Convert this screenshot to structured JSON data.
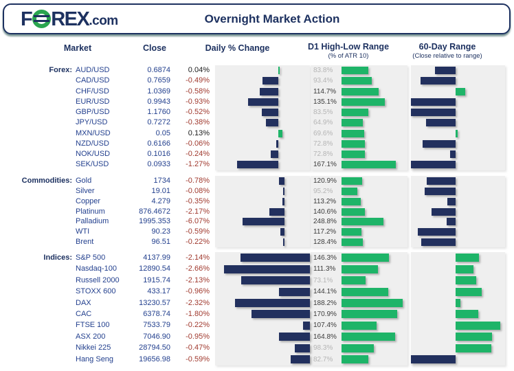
{
  "title": "Overnight Market Action",
  "logo": {
    "pre": "F",
    "mid": "REX",
    "suffix": ".com"
  },
  "columns": {
    "market": "Market",
    "close": "Close",
    "daily": "Daily % Change",
    "d1": "D1 High-Low Range",
    "d1_sub": "(% of ATR 10)",
    "range60": "60-Day Range",
    "range60_sub": "(Close relative to range)"
  },
  "colors": {
    "accent_navy": "#22305e",
    "accent_green": "#1eb468",
    "header_navy": "#1d3160",
    "navy_text": "#23408e",
    "positive_text": "#1a1a1a",
    "negative_text": "#a0392e",
    "panel_bg": "#efefef",
    "muted_label": "#b4b4b4",
    "dark_label": "#3a3a3a",
    "logo_green": "#2aa54f"
  },
  "chart_data": {
    "type": "table",
    "title": "Overnight Market Action",
    "columns": [
      "Market",
      "Close",
      "Daily % Change",
      "D1 High-Low Range (% of ATR 10)",
      "60-Day Range (Close relative to range)"
    ],
    "notes": "Daily % Change and 60-Day Range are diverging bar charts: navy = negative / lower half of range, green = positive / upper half. D1 range bars are green with value labels; labels under 100% are grayed. range60_pct is close position relative to 60-day range midpoint, -100 = at range low, +100 = at range high.",
    "sections": [
      {
        "label": "Forex:",
        "rows": [
          {
            "market": "AUD/USD",
            "close": "0.6874",
            "daily_label": "0.04%",
            "daily_pct": 0.04,
            "d1_label": "83.8%",
            "d1_pct": 83.8,
            "range60_pct": -46
          },
          {
            "market": "CAD/USD",
            "close": "0.7659",
            "daily_label": "-0.49%",
            "daily_pct": -0.49,
            "d1_label": "93.4%",
            "d1_pct": 93.4,
            "range60_pct": -78
          },
          {
            "market": "CHF/USD",
            "close": "1.0369",
            "daily_label": "-0.58%",
            "daily_pct": -0.58,
            "d1_label": "114.7%",
            "d1_pct": 114.7,
            "range60_pct": 22
          },
          {
            "market": "EUR/USD",
            "close": "0.9943",
            "daily_label": "-0.93%",
            "daily_pct": -0.93,
            "d1_label": "135.1%",
            "d1_pct": 135.1,
            "range60_pct": -100
          },
          {
            "market": "GBP/USD",
            "close": "1.1760",
            "daily_label": "-0.52%",
            "daily_pct": -0.52,
            "d1_label": "83.5%",
            "d1_pct": 83.5,
            "range60_pct": -100
          },
          {
            "market": "JPY/USD",
            "close": "0.7272",
            "daily_label": "-0.38%",
            "daily_pct": -0.38,
            "d1_label": "64.9%",
            "d1_pct": 64.9,
            "range60_pct": -66
          },
          {
            "market": "MXN/USD",
            "close": "0.05",
            "daily_label": "0.13%",
            "daily_pct": 0.13,
            "d1_label": "69.6%",
            "d1_pct": 69.6,
            "range60_pct": 5
          },
          {
            "market": "NZD/USD",
            "close": "0.6166",
            "daily_label": "-0.06%",
            "daily_pct": -0.06,
            "d1_label": "72.8%",
            "d1_pct": 72.8,
            "range60_pct": -74
          },
          {
            "market": "NOK/USD",
            "close": "0.1016",
            "daily_label": "-0.24%",
            "daily_pct": -0.24,
            "d1_label": "72.8%",
            "d1_pct": 72.8,
            "range60_pct": -12
          },
          {
            "market": "SEK/USD",
            "close": "0.0933",
            "daily_label": "-1.27%",
            "daily_pct": -1.27,
            "d1_label": "167.1%",
            "d1_pct": 167.1,
            "range60_pct": -100
          }
        ]
      },
      {
        "label": "Commodities:",
        "rows": [
          {
            "market": "Gold",
            "close": "1734",
            "daily_label": "-0.78%",
            "daily_pct": -0.78,
            "d1_label": "120.9%",
            "d1_pct": 120.9,
            "range60_pct": -65
          },
          {
            "market": "Silver",
            "close": "19.01",
            "daily_label": "-0.08%",
            "daily_pct": -0.08,
            "d1_label": "95.2%",
            "d1_pct": 95.2,
            "range60_pct": -69
          },
          {
            "market": "Copper",
            "close": "4.279",
            "daily_label": "-0.35%",
            "daily_pct": -0.35,
            "d1_label": "113.2%",
            "d1_pct": 113.2,
            "range60_pct": -18
          },
          {
            "market": "Platinum",
            "close": "876.4672",
            "daily_label": "-2.17%",
            "daily_pct": -2.17,
            "d1_label": "140.6%",
            "d1_pct": 140.6,
            "range60_pct": -54
          },
          {
            "market": "Palladium",
            "close": "1995.353",
            "daily_label": "-6.07%",
            "daily_pct": -6.07,
            "d1_label": "248.8%",
            "d1_pct": 248.8,
            "range60_pct": -20
          },
          {
            "market": "WTI",
            "close": "90.23",
            "daily_label": "-0.59%",
            "daily_pct": -0.59,
            "d1_label": "117.2%",
            "d1_pct": 117.2,
            "range60_pct": -85
          },
          {
            "market": "Brent",
            "close": "96.51",
            "daily_label": "-0.22%",
            "daily_pct": -0.22,
            "d1_label": "128.4%",
            "d1_pct": 128.4,
            "range60_pct": -77
          }
        ]
      },
      {
        "label": "Indices:",
        "rows": [
          {
            "market": "S&P 500",
            "close": "4137.99",
            "daily_label": "-2.14%",
            "daily_pct": -2.14,
            "d1_label": "146.3%",
            "d1_pct": 146.3,
            "range60_pct": 52
          },
          {
            "market": "Nasdaq-100",
            "close": "12890.54",
            "daily_label": "-2.66%",
            "daily_pct": -2.66,
            "d1_label": "111.3%",
            "d1_pct": 111.3,
            "range60_pct": 40
          },
          {
            "market": "Russell 2000",
            "close": "1915.74",
            "daily_label": "-2.13%",
            "daily_pct": -2.13,
            "d1_label": "73.1%",
            "d1_pct": 73.1,
            "range60_pct": 46
          },
          {
            "market": "STOXX 600",
            "close": "433.17",
            "daily_label": "-0.96%",
            "daily_pct": -0.96,
            "d1_label": "144.1%",
            "d1_pct": 144.1,
            "range60_pct": 58
          },
          {
            "market": "DAX",
            "close": "13230.57",
            "daily_label": "-2.32%",
            "daily_pct": -2.32,
            "d1_label": "188.2%",
            "d1_pct": 188.2,
            "range60_pct": 11
          },
          {
            "market": "CAC",
            "close": "6378.74",
            "daily_label": "-1.80%",
            "daily_pct": -1.8,
            "d1_label": "170.9%",
            "d1_pct": 170.9,
            "range60_pct": 51
          },
          {
            "market": "FTSE 100",
            "close": "7533.79",
            "daily_label": "-0.22%",
            "daily_pct": -0.22,
            "d1_label": "107.4%",
            "d1_pct": 107.4,
            "range60_pct": 100
          },
          {
            "market": "ASX 200",
            "close": "7046.90",
            "daily_label": "-0.95%",
            "daily_pct": -0.95,
            "d1_label": "164.8%",
            "d1_pct": 164.8,
            "range60_pct": 82
          },
          {
            "market": "Nikkei 225",
            "close": "28794.50",
            "daily_label": "-0.47%",
            "daily_pct": -0.47,
            "d1_label": "98.3%",
            "d1_pct": 98.3,
            "range60_pct": 80
          },
          {
            "market": "Hang Seng",
            "close": "19656.98",
            "daily_label": "-0.59%",
            "daily_pct": -0.59,
            "d1_label": "82.7%",
            "d1_pct": 82.7,
            "range60_pct": -100
          }
        ]
      }
    ]
  }
}
